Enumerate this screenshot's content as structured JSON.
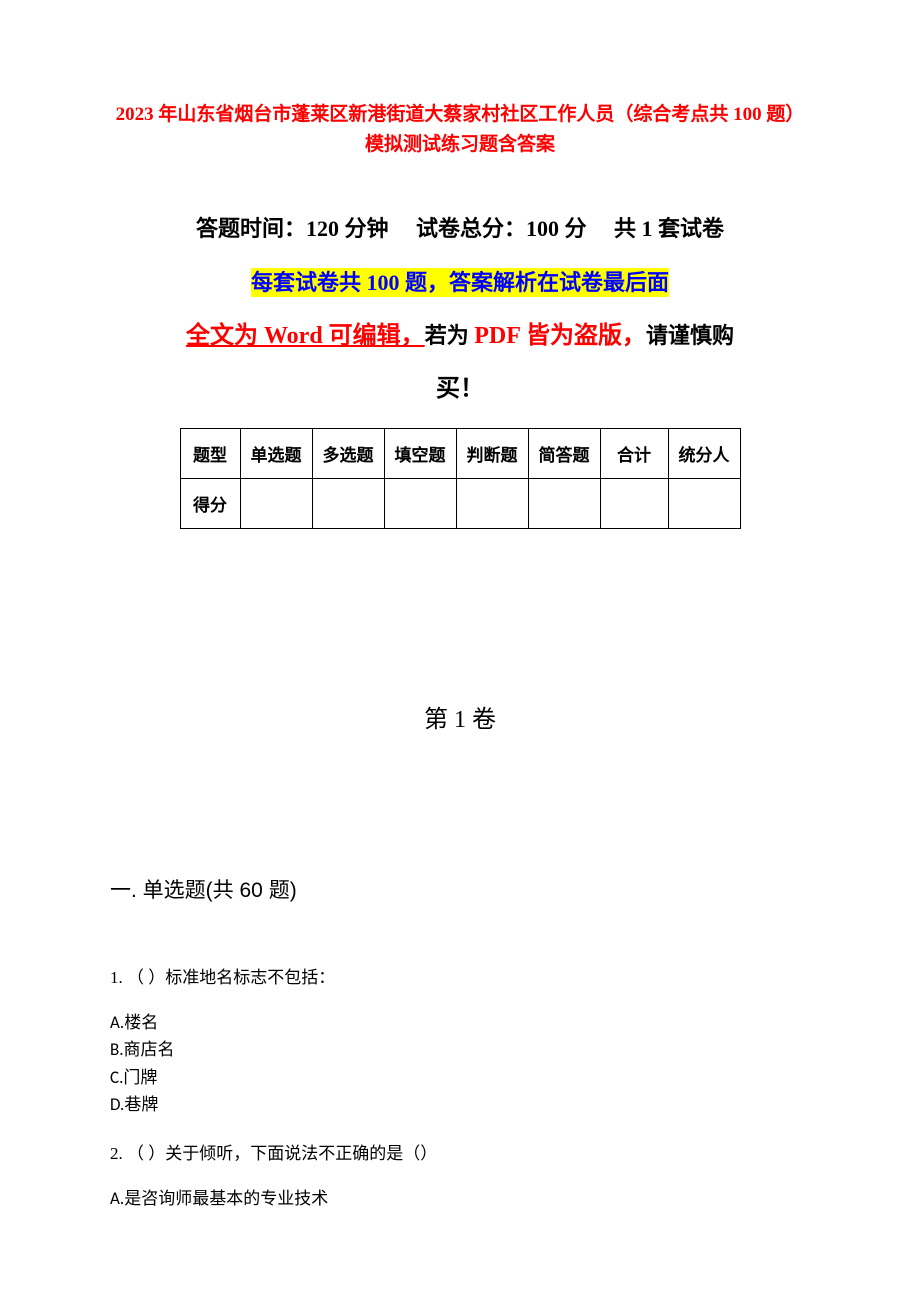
{
  "title": "2023 年山东省烟台市蓬莱区新港街道大蔡家村社区工作人员（综合考点共 100 题）模拟测试练习题含答案",
  "exam_info": {
    "time_label": "答题时间：",
    "time_value": "120 分钟",
    "score_label": "试卷总分：",
    "score_value": "100 分",
    "set_label": "共 1 套试卷"
  },
  "highlight_text": "每套试卷共 100 题，答案解析在试卷最后面",
  "word_editable": {
    "part1": "全文为 Word 可编辑，",
    "part2": "若为 ",
    "part3": "PDF 皆为盗版，",
    "part4": "请谨慎购",
    "part5": "买！"
  },
  "table": {
    "headers": [
      "题型",
      "单选题",
      "多选题",
      "填空题",
      "判断题",
      "简答题",
      "合计",
      "统分人"
    ],
    "row_label": "得分"
  },
  "volume": "第 1 卷",
  "section": "一. 单选题(共 60 题)",
  "questions": [
    {
      "number": "1.",
      "text": "（ ）标准地名标志不包括：",
      "options": [
        "A.楼名",
        "B.商店名",
        "C.门牌",
        "D.巷牌"
      ]
    },
    {
      "number": "2.",
      "text": "（ ）关于倾听，下面说法不正确的是（）",
      "options": [
        "A.是咨询师最基本的专业技术"
      ]
    }
  ],
  "styling": {
    "title_color": "#ff0000",
    "highlight_bg": "#ffff00",
    "highlight_text_color": "#0000ff",
    "body_bg": "#ffffff",
    "text_color": "#000000",
    "border_color": "#000000",
    "title_fontsize": 19,
    "info_fontsize": 22,
    "word_line_fontsize": 24,
    "volume_fontsize": 24,
    "section_fontsize": 21,
    "body_fontsize": 17
  }
}
